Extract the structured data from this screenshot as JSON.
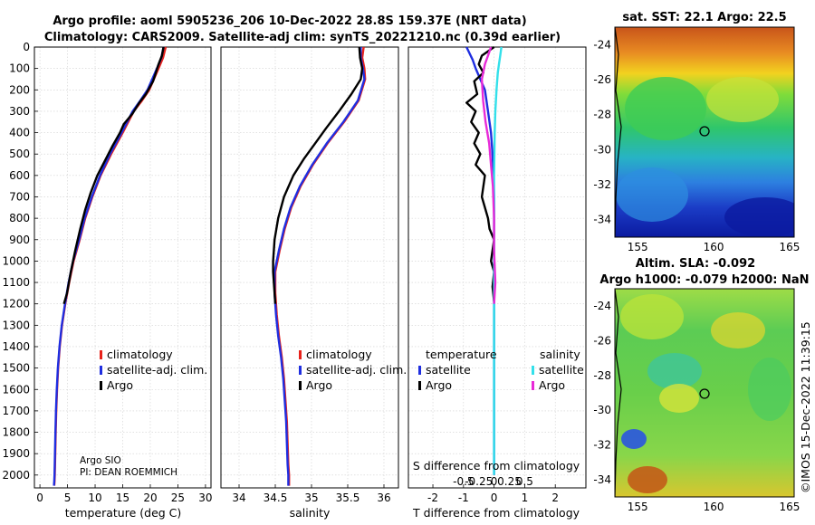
{
  "header": {
    "title_line1": "Argo profile: aoml 5905236_206 10-Dec-2022 28.8S 159.37E (NRT data)",
    "title_line2": "Climatology: CARS2009. Satellite-adj clim: synTS_20221210.nc (0.39d earlier)"
  },
  "colors": {
    "climatology": "#e8221b",
    "satellite_adj": "#1f2ee0",
    "argo": "#000000",
    "sat_salinity": "#33e0ea",
    "argo_salinity": "#e82ad8"
  },
  "credit": {
    "line1": "Argo SIO",
    "line2": "PI: DEAN ROEMMICH"
  },
  "timestamp": "©IMOS 15-Dec-2022 11:39:15",
  "chart_data": [
    {
      "id": "temperature",
      "type": "line",
      "xlabel": "temperature (deg C)",
      "ylabel": "",
      "xlim": [
        -1,
        31
      ],
      "ylim": [
        2060,
        0
      ],
      "xticks": [
        0,
        5,
        10,
        15,
        20,
        25,
        30
      ],
      "xtick_labels": [
        "0",
        "5",
        "10",
        "15",
        "20",
        "25",
        "30"
      ],
      "yticks": [
        0,
        100,
        200,
        300,
        400,
        500,
        600,
        700,
        800,
        900,
        1000,
        1100,
        1200,
        1300,
        1400,
        1500,
        1600,
        1700,
        1800,
        1900,
        2000
      ],
      "ytick_labels": [
        "0",
        "100",
        "200",
        "300",
        "400",
        "500",
        "600",
        "700",
        "800",
        "900",
        "1000",
        "1100",
        "1200",
        "1300",
        "1400",
        "1500",
        "1600",
        "1700",
        "1800",
        "1900",
        "2000"
      ],
      "grid": true,
      "legend": {
        "placement": "lower-middle",
        "entries": [
          "climatology",
          "satellite-adj. clim.",
          "Argo"
        ]
      },
      "series": [
        {
          "name": "climatology",
          "x": [
            22.8,
            22.3,
            21.5,
            19.8,
            18.5,
            17.0,
            15.0,
            12.9,
            11.0,
            9.5,
            8.2,
            7.2,
            6.1,
            5.3,
            4.6,
            4.0,
            3.6,
            3.3,
            3.1,
            2.95,
            2.85,
            2.78,
            2.7,
            2.65,
            2.6
          ],
          "y": [
            0,
            50,
            100,
            200,
            250,
            300,
            400,
            500,
            600,
            700,
            800,
            900,
            1000,
            1100,
            1200,
            1300,
            1400,
            1500,
            1600,
            1700,
            1800,
            1900,
            2000,
            2030,
            2050
          ]
        },
        {
          "name": "satellite-adj. clim.",
          "x": [
            22.4,
            22.0,
            21.2,
            19.5,
            18.2,
            16.8,
            14.8,
            12.7,
            10.9,
            9.4,
            8.1,
            7.1,
            6.0,
            5.2,
            4.55,
            3.95,
            3.55,
            3.25,
            3.05,
            2.9,
            2.8,
            2.72,
            2.65,
            2.6,
            2.55
          ],
          "y": [
            0,
            50,
            100,
            200,
            250,
            300,
            400,
            500,
            600,
            700,
            800,
            900,
            1000,
            1100,
            1200,
            1300,
            1400,
            1500,
            1600,
            1700,
            1800,
            1900,
            2000,
            2030,
            2050
          ]
        },
        {
          "name": "Argo",
          "x": [
            22.4,
            22.1,
            21.5,
            21.0,
            20.5,
            19.2,
            18.0,
            16.8,
            15.2,
            14.5,
            13.2,
            11.8,
            10.4,
            9.2,
            8.2,
            7.3,
            6.4,
            5.6,
            4.9,
            4.35
          ],
          "y": [
            0,
            40,
            80,
            120,
            160,
            220,
            260,
            310,
            360,
            400,
            460,
            530,
            600,
            680,
            760,
            850,
            950,
            1050,
            1150,
            1200
          ]
        }
      ]
    },
    {
      "id": "salinity",
      "type": "line",
      "xlabel": "salinity",
      "ylabel": "",
      "xlim": [
        33.75,
        36.2
      ],
      "ylim": [
        2060,
        0
      ],
      "xticks": [
        34,
        34.5,
        35,
        35.5,
        36
      ],
      "xtick_labels": [
        "34",
        "34.5",
        "35",
        "35.5",
        "36"
      ],
      "grid": true,
      "legend": {
        "placement": "lower-middle",
        "entries": [
          "climatology",
          "satellite-adj. clim.",
          "Argo"
        ]
      },
      "series": [
        {
          "name": "climatology",
          "x": [
            35.72,
            35.7,
            35.73,
            35.74,
            35.65,
            35.45,
            35.22,
            35.02,
            34.85,
            34.72,
            34.63,
            34.56,
            34.5,
            34.5,
            34.52,
            34.55,
            34.59,
            34.62,
            34.64,
            34.66,
            34.67,
            34.68,
            34.69,
            34.69,
            34.69
          ],
          "y": [
            0,
            50,
            100,
            150,
            250,
            350,
            450,
            550,
            650,
            750,
            850,
            950,
            1050,
            1150,
            1250,
            1350,
            1450,
            1550,
            1650,
            1750,
            1850,
            1950,
            2000,
            2030,
            2050
          ]
        },
        {
          "name": "satellite-adj. clim.",
          "x": [
            35.68,
            35.68,
            35.71,
            35.73,
            35.64,
            35.44,
            35.21,
            35.01,
            34.84,
            34.71,
            34.62,
            34.55,
            34.49,
            34.49,
            34.51,
            34.54,
            34.58,
            34.61,
            34.63,
            34.65,
            34.66,
            34.67,
            34.68,
            34.68,
            34.68
          ],
          "y": [
            0,
            50,
            100,
            150,
            250,
            350,
            450,
            550,
            650,
            750,
            850,
            950,
            1050,
            1150,
            1250,
            1350,
            1450,
            1550,
            1650,
            1750,
            1850,
            1950,
            2000,
            2030,
            2050
          ]
        },
        {
          "name": "Argo",
          "x": [
            35.66,
            35.67,
            35.7,
            35.68,
            35.55,
            35.38,
            35.2,
            35.05,
            34.9,
            34.75,
            34.62,
            34.54,
            34.49,
            34.47,
            34.47,
            34.48,
            34.49,
            34.5
          ],
          "y": [
            0,
            50,
            100,
            150,
            220,
            300,
            380,
            450,
            520,
            600,
            700,
            800,
            900,
            1000,
            1050,
            1100,
            1150,
            1200
          ]
        }
      ]
    },
    {
      "id": "difference",
      "type": "line",
      "xlabel": "T difference from climatology",
      "ylabel": "",
      "xlim": [
        -2.8,
        3.0
      ],
      "ylim": [
        2060,
        0
      ],
      "xticks": [
        -2,
        -1,
        0,
        1,
        2
      ],
      "xtick_labels": [
        "-2",
        "-1",
        "0",
        "1",
        "2"
      ],
      "secondary_xlabel": "S difference from climatology",
      "secondary_xtick_labels": [
        "-0.5",
        "-0.25",
        "0",
        "0.25",
        "0.5"
      ],
      "grid": true,
      "legend": {
        "placement": "lower",
        "temperature_header": "temperature",
        "salinity_header": "salinity",
        "entries": [
          "satellite",
          "Argo",
          "satellite",
          "Argo"
        ]
      },
      "series": [
        {
          "name": "temperature satellite",
          "x": [
            -0.9,
            -0.8,
            -0.7,
            -0.6,
            -0.45,
            -0.3,
            -0.2,
            -0.1,
            -0.05,
            -0.02,
            0.0,
            0.0,
            0.0,
            0.0,
            0.0
          ],
          "y": [
            0,
            30,
            60,
            100,
            150,
            200,
            300,
            400,
            500,
            600,
            700,
            900,
            1200,
            1600,
            2000
          ]
        },
        {
          "name": "temperature Argo",
          "x": [
            0.0,
            -0.4,
            -0.5,
            -0.35,
            -0.65,
            -0.55,
            -0.9,
            -0.6,
            -0.75,
            -0.5,
            -0.65,
            -0.45,
            -0.6,
            -0.3,
            -0.4,
            -0.2,
            -0.15,
            0.0,
            -0.1,
            0.0,
            -0.05,
            0.0
          ],
          "y": [
            0,
            40,
            80,
            120,
            160,
            220,
            260,
            300,
            350,
            400,
            450,
            500,
            550,
            600,
            700,
            800,
            850,
            900,
            1000,
            1050,
            1120,
            1190
          ]
        },
        {
          "name": "salinity satellite",
          "x": [
            0.12,
            0.1,
            0.08,
            0.06,
            0.04,
            0.02,
            0.01,
            0.0,
            0.0,
            0.0,
            0.0
          ],
          "y": [
            0,
            40,
            80,
            120,
            200,
            300,
            400,
            600,
            1000,
            1500,
            2000
          ]
        },
        {
          "name": "salinity Argo",
          "x": [
            -0.05,
            -0.1,
            -0.15,
            -0.2,
            -0.18,
            -0.14,
            -0.08,
            -0.05,
            -0.02,
            0.0,
            0.0,
            0.02,
            0.0
          ],
          "y": [
            0,
            40,
            80,
            150,
            250,
            350,
            450,
            550,
            650,
            800,
            950,
            1100,
            1200
          ]
        }
      ]
    },
    {
      "id": "sst_map",
      "type": "heatmap",
      "title": "sat. SST: 22.1 Argo: 22.5",
      "xlim": [
        153.5,
        165.3
      ],
      "ylim": [
        -35,
        -23
      ],
      "xticks": [
        155,
        160,
        165
      ],
      "xtick_labels": [
        "155",
        "160",
        "165"
      ],
      "yticks": [
        -24,
        -26,
        -28,
        -30,
        -32,
        -34
      ],
      "ytick_labels": [
        "-24",
        "-26",
        "-28",
        "-30",
        "-32",
        "-34"
      ],
      "float_position": [
        159.37,
        -28.8
      ]
    },
    {
      "id": "sla_map",
      "type": "heatmap",
      "title": "Altim. SLA: -0.092",
      "subtitle": "Argo h1000: -0.079 h2000: NaN",
      "xlim": [
        153.5,
        165.3
      ],
      "ylim": [
        -35,
        -23
      ],
      "xticks": [
        155,
        160,
        165
      ],
      "xtick_labels": [
        "155",
        "160",
        "165"
      ],
      "yticks": [
        -24,
        -26,
        -28,
        -30,
        -32,
        -34
      ],
      "ytick_labels": [
        "-24",
        "-26",
        "-28",
        "-30",
        "-32",
        "-34"
      ],
      "float_position": [
        159.37,
        -28.8
      ]
    }
  ]
}
